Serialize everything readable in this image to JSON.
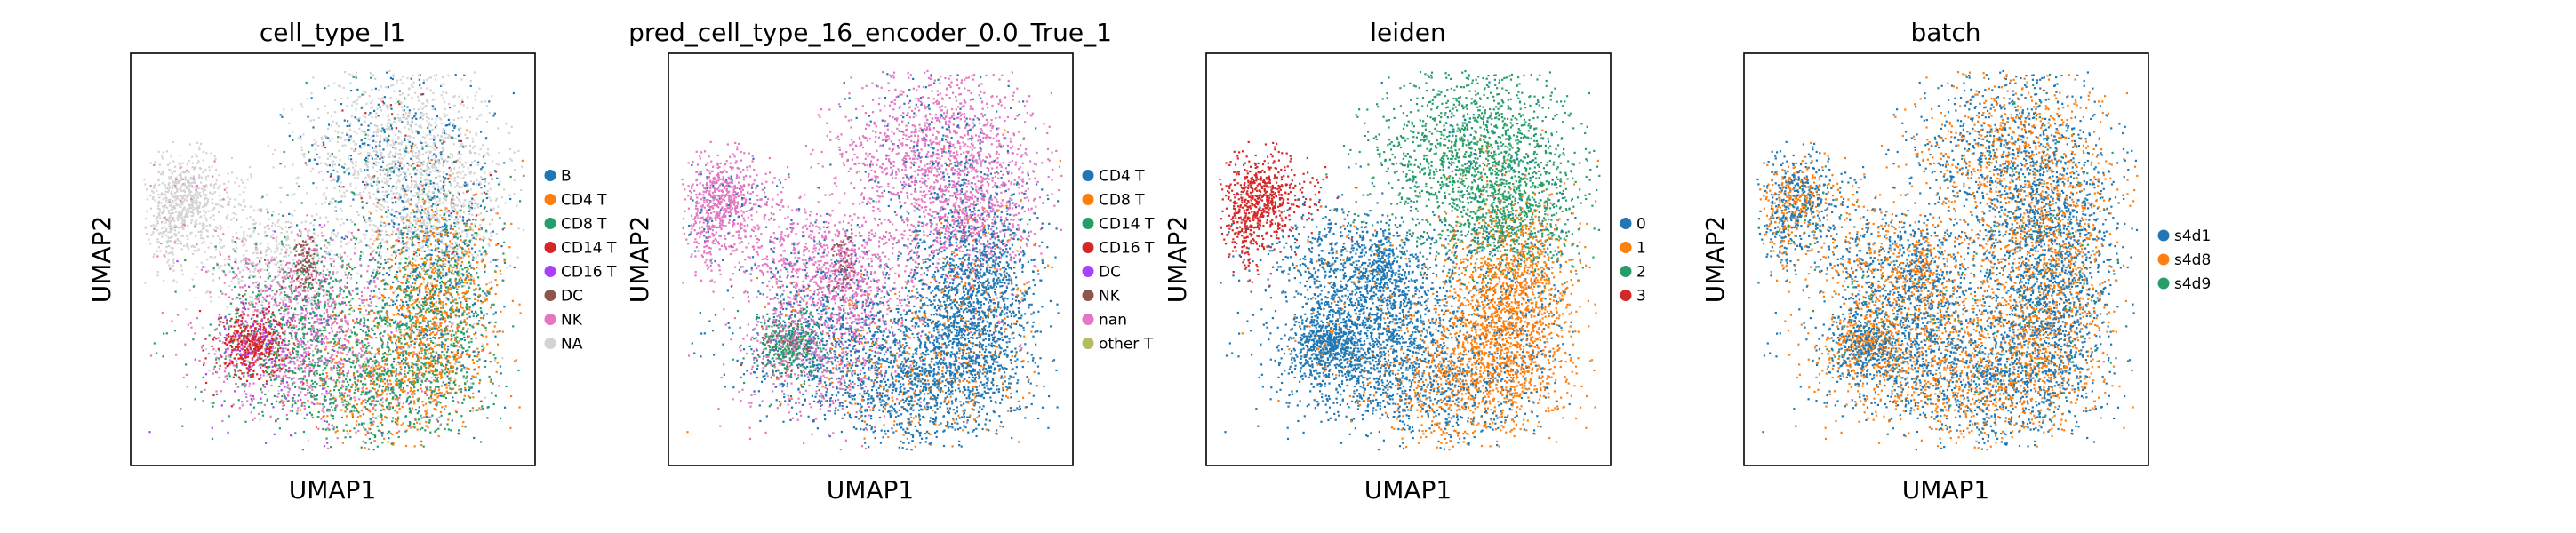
{
  "chart_data": [
    {
      "type": "scatter",
      "title": "cell_type_l1",
      "xlabel": "UMAP1",
      "ylabel": "UMAP2",
      "legend_position": "right",
      "legend": [
        {
          "label": "B",
          "color": "#1f77b4"
        },
        {
          "label": "CD4 T",
          "color": "#ff7f0e"
        },
        {
          "label": "CD8 T",
          "color": "#279e68"
        },
        {
          "label": "CD14 T",
          "color": "#d62728"
        },
        {
          "label": "CD16 T",
          "color": "#aa40fc"
        },
        {
          "label": "DC",
          "color": "#8c564b"
        },
        {
          "label": "NK",
          "color": "#e377c2"
        },
        {
          "label": "NA",
          "color": "#d3d3d3"
        }
      ]
    },
    {
      "type": "scatter",
      "title": "pred_cell_type_16_encoder_0.0_True_1",
      "xlabel": "UMAP1",
      "ylabel": "UMAP2",
      "legend_position": "right",
      "legend": [
        {
          "label": "CD4 T",
          "color": "#1f77b4"
        },
        {
          "label": "CD8 T",
          "color": "#ff7f0e"
        },
        {
          "label": "CD14 T",
          "color": "#279e68"
        },
        {
          "label": "CD16 T",
          "color": "#d62728"
        },
        {
          "label": "DC",
          "color": "#aa40fc"
        },
        {
          "label": "NK",
          "color": "#8c564b"
        },
        {
          "label": "nan",
          "color": "#e377c2"
        },
        {
          "label": "other T",
          "color": "#b5bd61"
        }
      ]
    },
    {
      "type": "scatter",
      "title": "leiden",
      "xlabel": "UMAP1",
      "ylabel": "UMAP2",
      "legend_position": "right",
      "legend": [
        {
          "label": "0",
          "color": "#1f77b4"
        },
        {
          "label": "1",
          "color": "#ff7f0e"
        },
        {
          "label": "2",
          "color": "#279e68"
        },
        {
          "label": "3",
          "color": "#d62728"
        }
      ]
    },
    {
      "type": "scatter",
      "title": "batch",
      "xlabel": "UMAP1",
      "ylabel": "UMAP2",
      "legend_position": "right",
      "legend": [
        {
          "label": "s4d1",
          "color": "#1f77b4"
        },
        {
          "label": "s4d8",
          "color": "#ff7f0e"
        },
        {
          "label": "s4d9",
          "color": "#279e68"
        }
      ]
    }
  ]
}
